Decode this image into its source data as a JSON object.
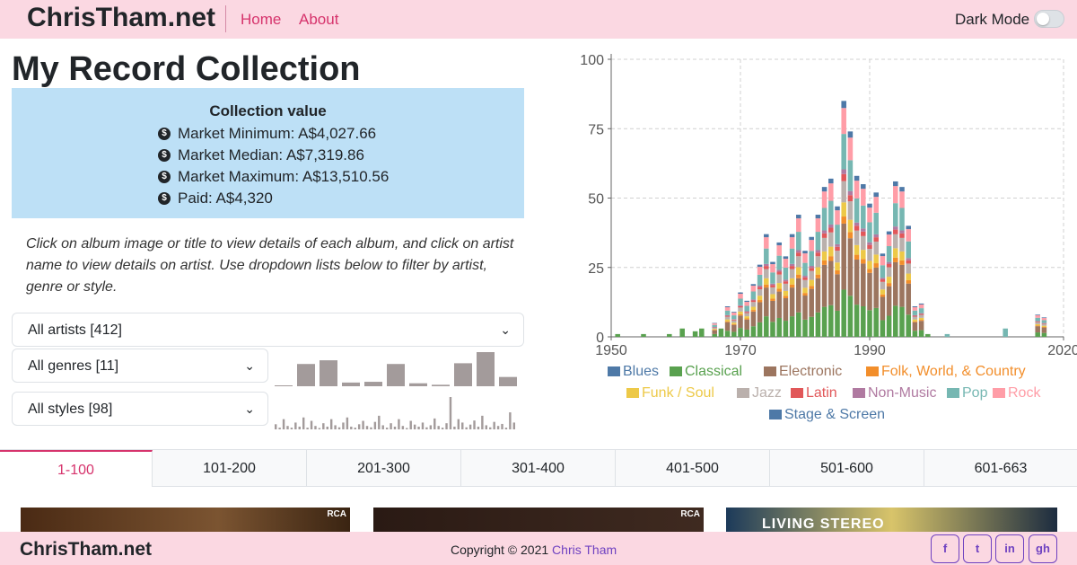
{
  "nav": {
    "brand": "ChrisTham.net",
    "home": "Home",
    "about": "About",
    "dark_mode": "Dark Mode"
  },
  "page": {
    "title": "My Record Collection"
  },
  "collection": {
    "heading": "Collection value",
    "items": [
      "Market Minimum: A$4,027.66",
      "Market Median: A$7,319.86",
      "Market Maximum: A$13,510.56",
      "Paid: A$4,320"
    ]
  },
  "instructions": "Click on album image or title to view details of each album, and click on artist name to view details on artist. Use dropdown lists below to filter by artist, genre or style.",
  "filters": {
    "artists": "All artists [412]",
    "genres": "All genres [11]",
    "styles": "All styles [98]"
  },
  "sparklines": {
    "genres": [
      2,
      60,
      70,
      10,
      12,
      60,
      8,
      4,
      62,
      92,
      25
    ],
    "styles": [
      15,
      5,
      30,
      10,
      5,
      20,
      8,
      35,
      5,
      25,
      10,
      4,
      18,
      8,
      30,
      12,
      6,
      20,
      35,
      8,
      5,
      15,
      25,
      10,
      6,
      22,
      40,
      12,
      5,
      18,
      8,
      30,
      10,
      4,
      25,
      14,
      8,
      20,
      6,
      12,
      32,
      10,
      5,
      18,
      95,
      8,
      30,
      20,
      6,
      14,
      26,
      8,
      40,
      12,
      6,
      22,
      10,
      16,
      5,
      50,
      20
    ]
  },
  "tabs": [
    "1-100",
    "101-200",
    "201-300",
    "301-400",
    "401-500",
    "501-600",
    "601-663"
  ],
  "albums": {
    "rca1": "RCA",
    "rca2": "RCA",
    "living": "LIVING STEREO"
  },
  "footer": {
    "brand": "ChrisTham.net",
    "copyright": "Copyright © 2021 ",
    "author": "Chris Tham"
  },
  "social": {
    "facebook": "f",
    "twitter": "t",
    "linkedin": "in",
    "github": "gh"
  },
  "chart_data": {
    "type": "bar",
    "stacked": true,
    "xlim": [
      1950,
      2020
    ],
    "ylim": [
      0,
      100
    ],
    "x_ticks": [
      "1950",
      "1970",
      "1990",
      "2020"
    ],
    "y_ticks": [
      "0",
      "25",
      "50",
      "75",
      "100"
    ],
    "grid": true,
    "legend_position": "bottom",
    "genre_colors": {
      "Blues": "#4e79a7",
      "Classical": "#59a14f",
      "Electronic": "#9c755f",
      "Folk, World, & Country": "#f28e2b",
      "Funk / Soul": "#edc948",
      "Jazz": "#bab0ac",
      "Latin": "#e15759",
      "Non-Music": "#b07aa1",
      "Pop": "#76b7b2",
      "Rock": "#ff9da7",
      "Stage & Screen": "#4e79a7"
    },
    "legend": [
      "Blues",
      "Classical",
      "Electronic",
      "Folk, World, & Country",
      "Funk / Soul",
      "Jazz",
      "Latin",
      "Non-Music",
      "Pop",
      "Rock",
      "Stage & Screen"
    ],
    "totals": [
      [
        1951,
        1
      ],
      [
        1955,
        1
      ],
      [
        1959,
        1
      ],
      [
        1961,
        3
      ],
      [
        1963,
        2
      ],
      [
        1964,
        3
      ],
      [
        1966,
        5
      ],
      [
        1967,
        3
      ],
      [
        1968,
        11
      ],
      [
        1969,
        9
      ],
      [
        1970,
        16
      ],
      [
        1971,
        13
      ],
      [
        1972,
        19
      ],
      [
        1973,
        26
      ],
      [
        1974,
        37
      ],
      [
        1975,
        27
      ],
      [
        1976,
        34
      ],
      [
        1977,
        29
      ],
      [
        1978,
        37
      ],
      [
        1979,
        44
      ],
      [
        1980,
        31
      ],
      [
        1981,
        36
      ],
      [
        1982,
        44
      ],
      [
        1983,
        54
      ],
      [
        1984,
        57
      ],
      [
        1985,
        47
      ],
      [
        1986,
        85
      ],
      [
        1987,
        74
      ],
      [
        1988,
        58
      ],
      [
        1989,
        55
      ],
      [
        1990,
        48
      ],
      [
        1991,
        52
      ],
      [
        1992,
        30
      ],
      [
        1993,
        38
      ],
      [
        1994,
        56
      ],
      [
        1995,
        54
      ],
      [
        1996,
        40
      ],
      [
        1997,
        11
      ],
      [
        1998,
        12
      ],
      [
        1999,
        1
      ],
      [
        2002,
        1
      ],
      [
        2011,
        3
      ],
      [
        2016,
        8
      ],
      [
        2017,
        7
      ]
    ]
  }
}
